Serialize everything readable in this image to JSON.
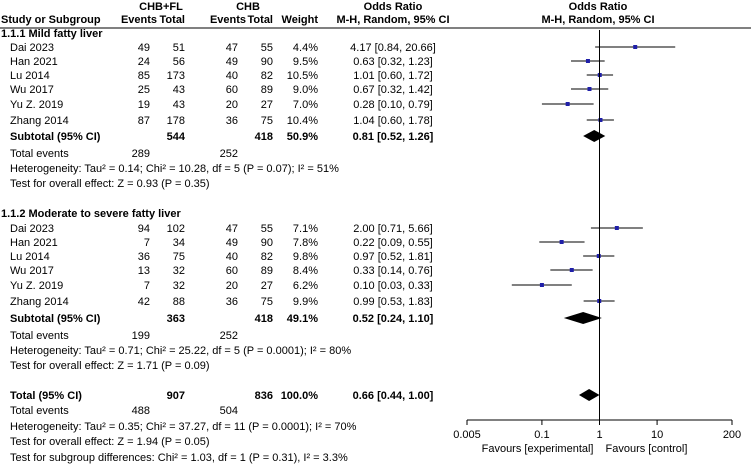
{
  "header": {
    "group1": "CHB+FL",
    "group2": "CHB",
    "col_study": "Study or Subgroup",
    "col_events1": "Events",
    "col_total1": "Total",
    "col_events2": "Events",
    "col_total2": "Total",
    "col_weight": "Weight",
    "or_title_left": "Odds Ratio",
    "or_method_left": "M-H, Random, 95% CI",
    "or_title_right": "Odds Ratio",
    "or_method_right": "M-H, Random, 95% CI"
  },
  "chart_data": {
    "type": "forest",
    "x_scale": "log",
    "xlim": [
      0.005,
      200
    ],
    "x_ticks": [
      "0.005",
      "0.1",
      "1",
      "10",
      "200"
    ],
    "reference_line": 1,
    "xlabel_left": "Favours [experimental]",
    "xlabel_right": "Favours [control]",
    "subgroups": [
      {
        "title": "1.1.1 Mild fatty liver",
        "studies": [
          {
            "name": "Dai 2023",
            "e1": "49",
            "n1": "51",
            "e2": "47",
            "n2": "55",
            "weight": "4.4%",
            "ci_text": "4.17 [0.84, 20.66]",
            "or": 4.17,
            "lo": 0.84,
            "hi": 20.66
          },
          {
            "name": "Han 2021",
            "e1": "24",
            "n1": "56",
            "e2": "49",
            "n2": "90",
            "weight": "9.5%",
            "ci_text": "0.63 [0.32, 1.23]",
            "or": 0.63,
            "lo": 0.32,
            "hi": 1.23
          },
          {
            "name": "Lu 2014",
            "e1": "85",
            "n1": "173",
            "e2": "40",
            "n2": "82",
            "weight": "10.5%",
            "ci_text": "1.01 [0.60, 1.72]",
            "or": 1.01,
            "lo": 0.6,
            "hi": 1.72
          },
          {
            "name": "Wu 2017",
            "e1": "25",
            "n1": "43",
            "e2": "60",
            "n2": "89",
            "weight": "9.0%",
            "ci_text": "0.67 [0.32, 1.42]",
            "or": 0.67,
            "lo": 0.32,
            "hi": 1.42
          },
          {
            "name": "Yu Z. 2019",
            "e1": "19",
            "n1": "43",
            "e2": "20",
            "n2": "27",
            "weight": "7.0%",
            "ci_text": "0.28 [0.10, 0.79]",
            "or": 0.28,
            "lo": 0.1,
            "hi": 0.79
          },
          {
            "name": "Zhang 2014",
            "e1": "87",
            "n1": "178",
            "e2": "36",
            "n2": "75",
            "weight": "10.4%",
            "ci_text": "1.04 [0.60, 1.78]",
            "or": 1.04,
            "lo": 0.6,
            "hi": 1.78
          }
        ],
        "subtotal": {
          "label": "Subtotal (95% CI)",
          "n1": "544",
          "n2": "418",
          "weight": "50.9%",
          "ci_text": "0.81 [0.52, 1.26]",
          "or": 0.81,
          "lo": 0.52,
          "hi": 1.26
        },
        "total_events": {
          "label": "Total events",
          "e1": "289",
          "e2": "252"
        },
        "heterogeneity": "Heterogeneity: Tau² = 0.14; Chi² = 10.28, df = 5 (P = 0.07); I² = 51%",
        "overall_effect": "Test for overall effect: Z = 0.93 (P = 0.35)"
      },
      {
        "title": "1.1.2 Moderate to severe fatty liver",
        "studies": [
          {
            "name": "Dai 2023",
            "e1": "94",
            "n1": "102",
            "e2": "47",
            "n2": "55",
            "weight": "7.1%",
            "ci_text": "2.00 [0.71, 5.66]",
            "or": 2.0,
            "lo": 0.71,
            "hi": 5.66
          },
          {
            "name": "Han 2021",
            "e1": "7",
            "n1": "34",
            "e2": "49",
            "n2": "90",
            "weight": "7.8%",
            "ci_text": "0.22 [0.09, 0.55]",
            "or": 0.22,
            "lo": 0.09,
            "hi": 0.55
          },
          {
            "name": "Lu 2014",
            "e1": "36",
            "n1": "75",
            "e2": "40",
            "n2": "82",
            "weight": "9.8%",
            "ci_text": "0.97 [0.52, 1.81]",
            "or": 0.97,
            "lo": 0.52,
            "hi": 1.81
          },
          {
            "name": "Wu 2017",
            "e1": "13",
            "n1": "32",
            "e2": "60",
            "n2": "89",
            "weight": "8.4%",
            "ci_text": "0.33 [0.14, 0.76]",
            "or": 0.33,
            "lo": 0.14,
            "hi": 0.76
          },
          {
            "name": "Yu Z. 2019",
            "e1": "7",
            "n1": "32",
            "e2": "20",
            "n2": "27",
            "weight": "6.2%",
            "ci_text": "0.10 [0.03, 0.33]",
            "or": 0.1,
            "lo": 0.03,
            "hi": 0.33
          },
          {
            "name": "Zhang 2014",
            "e1": "42",
            "n1": "88",
            "e2": "36",
            "n2": "75",
            "weight": "9.9%",
            "ci_text": "0.99 [0.53, 1.83]",
            "or": 0.99,
            "lo": 0.53,
            "hi": 1.83
          }
        ],
        "subtotal": {
          "label": "Subtotal (95% CI)",
          "n1": "363",
          "n2": "418",
          "weight": "49.1%",
          "ci_text": "0.52 [0.24, 1.10]",
          "or": 0.52,
          "lo": 0.24,
          "hi": 1.1
        },
        "total_events": {
          "label": "Total events",
          "e1": "199",
          "e2": "252"
        },
        "heterogeneity": "Heterogeneity: Tau² = 0.71; Chi² = 25.22, df = 5 (P = 0.0001); I² = 80%",
        "overall_effect": "Test for overall effect: Z = 1.71 (P = 0.09)"
      }
    ],
    "overall": {
      "total": {
        "label": "Total (95% CI)",
        "n1": "907",
        "n2": "836",
        "weight": "100.0%",
        "ci_text": "0.66 [0.44, 1.00]",
        "or": 0.66,
        "lo": 0.44,
        "hi": 1.0
      },
      "total_events": {
        "label": "Total events",
        "e1": "488",
        "e2": "504"
      },
      "heterogeneity": "Heterogeneity: Tau² = 0.35; Chi² = 37.27, df = 11 (P = 0.0001); I² = 70%",
      "overall_effect": "Test for overall effect: Z = 1.94 (P = 0.05)",
      "subgroup_differences": "Test for subgroup differences: Chi² = 1.03, df = 1 (P = 0.31), I² = 3.3%"
    },
    "colors": {
      "marker": "#1f1fa8",
      "diamond": "#000000",
      "line": "#000000"
    }
  }
}
